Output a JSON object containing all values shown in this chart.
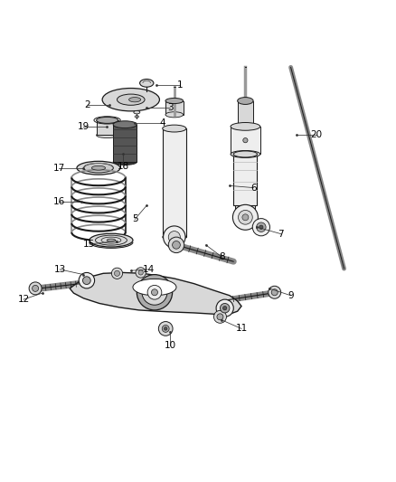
{
  "background_color": "#ffffff",
  "line_color": "#1a1a1a",
  "gray_fill": "#d8d8d8",
  "dark_fill": "#555555",
  "mid_fill": "#aaaaaa",
  "light_fill": "#eeeeee",
  "label_fontsize": 7.5,
  "parts_info": [
    [
      1,
      0.395,
      0.895,
      0.455,
      0.895
    ],
    [
      2,
      0.275,
      0.845,
      0.22,
      0.845
    ],
    [
      3,
      0.37,
      0.838,
      0.43,
      0.838
    ],
    [
      4,
      0.34,
      0.8,
      0.41,
      0.8
    ],
    [
      5,
      0.37,
      0.59,
      0.34,
      0.555
    ],
    [
      6,
      0.58,
      0.64,
      0.64,
      0.635
    ],
    [
      7,
      0.65,
      0.535,
      0.71,
      0.518
    ],
    [
      8,
      0.52,
      0.49,
      0.56,
      0.46
    ],
    [
      9,
      0.68,
      0.38,
      0.735,
      0.362
    ],
    [
      10,
      0.43,
      0.27,
      0.43,
      0.235
    ],
    [
      11,
      0.56,
      0.3,
      0.61,
      0.278
    ],
    [
      12,
      0.105,
      0.368,
      0.058,
      0.352
    ],
    [
      13,
      0.21,
      0.415,
      0.15,
      0.428
    ],
    [
      14,
      0.33,
      0.425,
      0.375,
      0.428
    ],
    [
      15,
      0.295,
      0.5,
      0.225,
      0.492
    ],
    [
      16,
      0.205,
      0.6,
      0.148,
      0.6
    ],
    [
      17,
      0.21,
      0.685,
      0.148,
      0.685
    ],
    [
      18,
      0.31,
      0.72,
      0.31,
      0.688
    ],
    [
      19,
      0.268,
      0.79,
      0.21,
      0.79
    ],
    [
      20,
      0.75,
      0.77,
      0.8,
      0.77
    ]
  ]
}
